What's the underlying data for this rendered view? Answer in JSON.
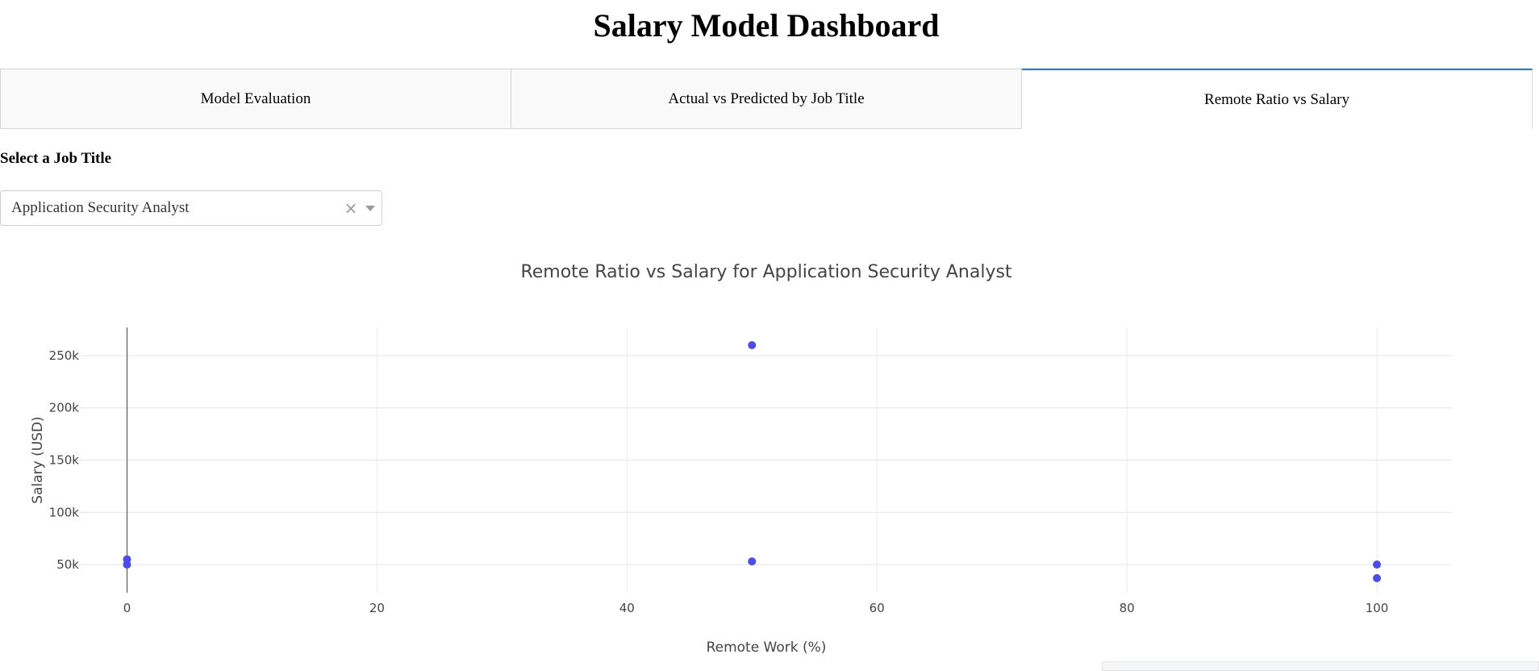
{
  "page": {
    "title": "Salary Model Dashboard"
  },
  "tabs": [
    {
      "label": "Model Evaluation",
      "active": false
    },
    {
      "label": "Actual vs Predicted by Job Title",
      "active": false
    },
    {
      "label": "Remote Ratio vs Salary",
      "active": true
    }
  ],
  "filter": {
    "label": "Select a Job Title",
    "selected": "Application Security Analyst",
    "clear_symbol": "×",
    "icons": [
      "clear-icon",
      "chevron-down-icon"
    ]
  },
  "colors": {
    "accent": "#1975fa",
    "marker": "#4c4cf0"
  },
  "chart_data": {
    "type": "scatter",
    "title": "Remote Ratio vs Salary for Application Security Analyst",
    "xlabel": "Remote Work (%)",
    "ylabel": "Salary (USD)",
    "xlim": [
      -5,
      106
    ],
    "ylim": [
      23000,
      277000
    ],
    "xticks": [
      0,
      20,
      40,
      60,
      80,
      100
    ],
    "yticks": [
      50000,
      100000,
      150000,
      200000,
      250000
    ],
    "yticklabels": [
      "50k",
      "100k",
      "150k",
      "200k",
      "250k"
    ],
    "grid": true,
    "series": [
      {
        "points": [
          {
            "x": 0,
            "y": 55000
          },
          {
            "x": 0,
            "y": 50000
          },
          {
            "x": 50,
            "y": 260000
          },
          {
            "x": 50,
            "y": 53000
          },
          {
            "x": 100,
            "y": 50000
          },
          {
            "x": 100,
            "y": 37000
          }
        ]
      }
    ]
  }
}
